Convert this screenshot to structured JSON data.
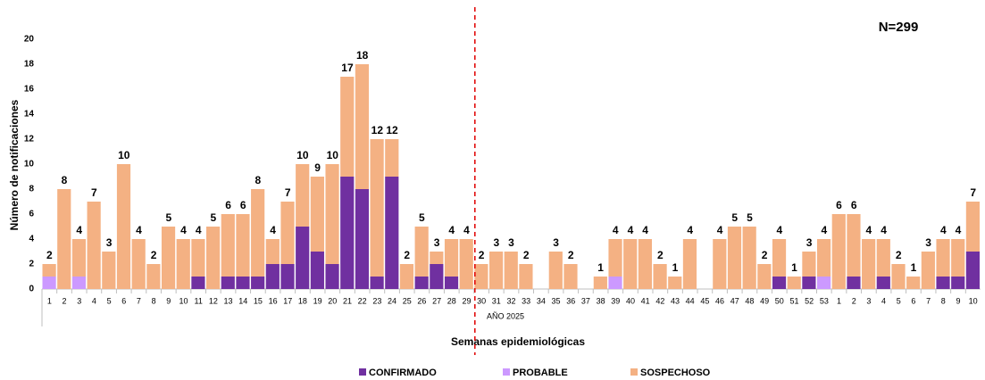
{
  "chart_data": {
    "type": "stacked-bar",
    "annotation": "N=299",
    "x_annotation": "AÑO 2025",
    "xlabel": "Semanas epidemiológicas",
    "ylabel": "Número de notificaciones",
    "categories": [
      "1",
      "2",
      "3",
      "4",
      "5",
      "6",
      "7",
      "8",
      "9",
      "10",
      "11",
      "12",
      "13",
      "14",
      "15",
      "16",
      "17",
      "18",
      "19",
      "20",
      "21",
      "22",
      "23",
      "24",
      "25",
      "26",
      "27",
      "28",
      "29",
      "30",
      "31",
      "32",
      "33",
      "34",
      "35",
      "36",
      "37",
      "38",
      "39",
      "40",
      "41",
      "42",
      "43",
      "44",
      "45",
      "46",
      "47",
      "48",
      "49",
      "50",
      "51",
      "52",
      "53",
      "1",
      "2",
      "3",
      "4",
      "5",
      "6",
      "7",
      "8",
      "9",
      "10"
    ],
    "series": [
      {
        "name": "CONFIRMADO",
        "color": "#7030a0",
        "values": [
          0,
          0,
          0,
          0,
          0,
          0,
          0,
          0,
          0,
          0,
          1,
          0,
          1,
          1,
          1,
          2,
          2,
          5,
          3,
          2,
          9,
          8,
          1,
          9,
          0,
          1,
          2,
          1,
          0,
          0,
          0,
          0,
          0,
          0,
          0,
          0,
          0,
          0,
          0,
          0,
          0,
          0,
          0,
          0,
          0,
          0,
          0,
          0,
          0,
          1,
          0,
          1,
          0,
          0,
          1,
          0,
          1,
          0,
          0,
          0,
          1,
          1,
          3
        ]
      },
      {
        "name": "PROBABLE",
        "color": "#cc99ff",
        "values": [
          1,
          0,
          1,
          0,
          0,
          0,
          0,
          0,
          0,
          0,
          0,
          0,
          0,
          0,
          0,
          0,
          0,
          0,
          0,
          0,
          0,
          0,
          0,
          0,
          0,
          0,
          0,
          0,
          0,
          0,
          0,
          0,
          0,
          0,
          0,
          0,
          0,
          0,
          1,
          0,
          0,
          0,
          0,
          0,
          0,
          0,
          0,
          0,
          0,
          0,
          0,
          0,
          1,
          0,
          0,
          0,
          0,
          0,
          0,
          0,
          0,
          0,
          0
        ]
      },
      {
        "name": "SOSPECHOSO",
        "color": "#f4b183",
        "values": [
          1,
          8,
          3,
          7,
          3,
          10,
          4,
          2,
          5,
          4,
          3,
          5,
          5,
          5,
          7,
          2,
          5,
          5,
          6,
          8,
          8,
          10,
          11,
          3,
          2,
          4,
          1,
          3,
          4,
          2,
          3,
          3,
          2,
          0,
          3,
          2,
          0,
          1,
          3,
          4,
          4,
          2,
          1,
          4,
          0,
          4,
          5,
          5,
          2,
          3,
          1,
          2,
          3,
          6,
          5,
          4,
          3,
          2,
          1,
          3,
          3,
          3,
          4
        ]
      }
    ],
    "totals": [
      2,
      8,
      4,
      7,
      3,
      10,
      4,
      2,
      5,
      4,
      4,
      5,
      6,
      6,
      8,
      4,
      7,
      10,
      9,
      10,
      17,
      18,
      12,
      12,
      2,
      5,
      3,
      4,
      4,
      2,
      3,
      3,
      2,
      null,
      3,
      2,
      null,
      1,
      4,
      4,
      4,
      2,
      1,
      4,
      null,
      4,
      5,
      5,
      2,
      4,
      1,
      3,
      4,
      6,
      6,
      4,
      4,
      2,
      1,
      3,
      4,
      4,
      7
    ],
    "ylim": [
      0,
      20
    ],
    "yticks": [
      0,
      2,
      4,
      6,
      8,
      10,
      12,
      14,
      16,
      18,
      20
    ]
  }
}
